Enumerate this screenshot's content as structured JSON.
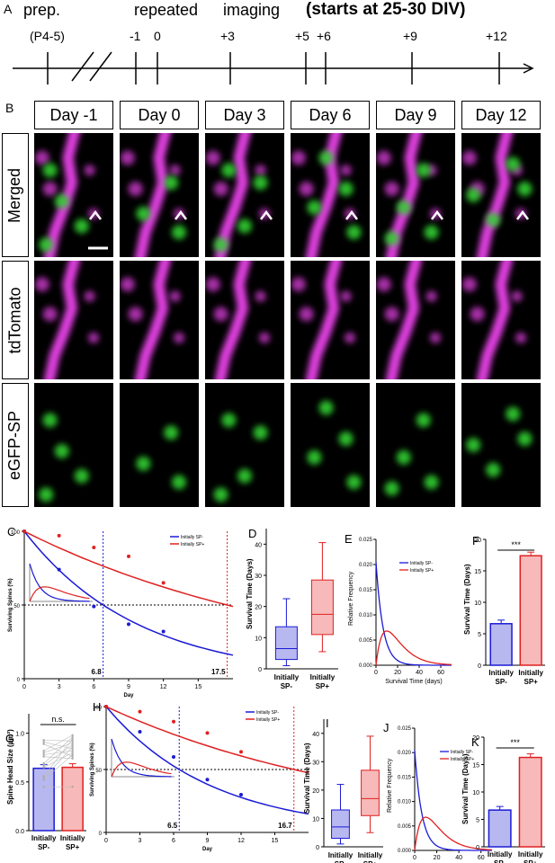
{
  "panelA": {
    "letter": "A",
    "prep": "prep.",
    "repeated": "repeated",
    "imaging": "imaging",
    "bold": "(starts at 25-30 DIV)",
    "prep_age": "(P4-5)",
    "ticks": [
      "-1",
      "0",
      "+3",
      "+5",
      "+6",
      "+9",
      "+12"
    ]
  },
  "panelB": {
    "letter": "B",
    "days": [
      "Day -1",
      "Day 0",
      "Day 3",
      "Day 6",
      "Day 9",
      "Day 12"
    ],
    "rows": [
      "Merged",
      "tdTomato",
      "eGFP-SP"
    ]
  },
  "legend": {
    "sp_minus": "Initially SP-",
    "sp_plus": "Initially SP+"
  },
  "colors": {
    "blue": "#1a1ad6",
    "red": "#e02020",
    "magenta": "#e040e0",
    "green": "#30d030"
  },
  "panelC": {
    "letter": "C",
    "ylabel": "Surviving Spines (%)",
    "xlabel": "Day",
    "marker_blue": "6.8",
    "marker_red": "17.5",
    "yticks": [
      "0",
      "50",
      "100"
    ],
    "xticks": [
      "0",
      "3",
      "6",
      "9",
      "12",
      "15"
    ]
  },
  "panelD": {
    "letter": "D",
    "ylabel": "Survival Time (Days)",
    "yticks": [
      "0",
      "10",
      "20",
      "30",
      "40"
    ],
    "cat1a": "Initially",
    "cat1b": "SP-",
    "cat2a": "Initially",
    "cat2b": "SP+"
  },
  "panelE": {
    "letter": "E",
    "ylabel": "Relative Frequency",
    "xlabel": "Survival Time (days)",
    "yticks": [
      "0.000",
      "0.005",
      "0.010",
      "0.015",
      "0.020",
      "0.025"
    ],
    "xticks": [
      "0",
      "20",
      "40",
      "60"
    ]
  },
  "panelF": {
    "letter": "F",
    "ylabel": "Survival Time (Days)",
    "sig": "***",
    "yticks": [
      "0",
      "5",
      "10",
      "15",
      "20"
    ],
    "cat1a": "Initially",
    "cat1b": "SP-",
    "cat2a": "Initially",
    "cat2b": "SP+"
  },
  "panelG": {
    "letter": "G",
    "ylabel": "Spine Head Size (µm²)",
    "sig": "n.s.",
    "yticks": [
      "0.0",
      "0.5",
      "1.0"
    ],
    "cat1a": "Initially",
    "cat1b": "SP-",
    "cat2a": "Initially",
    "cat2b": "SP+"
  },
  "panelH": {
    "letter": "H",
    "ylabel": "Surviving Spines (%)",
    "xlabel": "Day",
    "marker_blue": "6.5",
    "marker_red": "16.7",
    "yticks": [
      "0",
      "50",
      "100"
    ],
    "xticks": [
      "0",
      "3",
      "6",
      "9",
      "12",
      "15"
    ]
  },
  "panelI": {
    "letter": "I",
    "ylabel": "Survival Time (Days)",
    "yticks": [
      "0",
      "10",
      "20",
      "30",
      "40"
    ],
    "cat1a": "Initially",
    "cat1b": "SP-",
    "cat2a": "Initially",
    "cat2b": "SP+"
  },
  "panelJ": {
    "letter": "J",
    "ylabel": "Relative Frequency",
    "xlabel": "Survival Time (days)",
    "yticks": [
      "0.000",
      "0.005",
      "0.010",
      "0.015",
      "0.020",
      "0.025"
    ],
    "xticks": [
      "0",
      "20",
      "40",
      "60"
    ]
  },
  "panelK": {
    "letter": "K",
    "ylabel": "Survival Time (Days)",
    "sig": "***",
    "yticks": [
      "0",
      "5",
      "10",
      "15",
      "20"
    ],
    "cat1a": "Initially",
    "cat1b": "SP-",
    "cat2a": "Initially",
    "cat2b": "SP+"
  },
  "chart_data": [
    {
      "type": "scatter",
      "panel": "C",
      "ylabel": "Surviving Spines (%)",
      "xlabel": "Day",
      "xlim": [
        0,
        18
      ],
      "ylim": [
        0,
        100
      ],
      "series": [
        {
          "name": "Initially SP-",
          "x": [
            0,
            3,
            6,
            9,
            12
          ],
          "y": [
            100,
            74,
            49,
            37,
            32
          ]
        },
        {
          "name": "Initially SP+",
          "x": [
            0,
            3,
            6,
            9,
            12
          ],
          "y": [
            100,
            97,
            89,
            83,
            65
          ]
        }
      ],
      "half_life": {
        "Initially SP-": 6.8,
        "Initially SP+": 17.5
      }
    },
    {
      "type": "bar",
      "panel": "D",
      "ylabel": "Survival Time (Days)",
      "ylim": [
        0,
        45
      ],
      "categories": [
        "Initially SP-",
        "Initially SP+"
      ],
      "boxes": [
        {
          "min": 1,
          "q1": 3,
          "median": 6.5,
          "q3": 13.5,
          "max": 22.5
        },
        {
          "min": 5.5,
          "q1": 11,
          "median": 17.5,
          "q3": 28.5,
          "max": 40.5
        }
      ]
    },
    {
      "type": "line",
      "panel": "E",
      "ylabel": "Relative Frequency",
      "xlabel": "Survival Time (days)",
      "xlim": [
        0,
        70
      ],
      "ylim": [
        0,
        0.025
      ],
      "series": [
        {
          "name": "Initially SP-",
          "peak_x": 0,
          "peak_y": 0.02
        },
        {
          "name": "Initially SP+",
          "peak_x": 10,
          "peak_y": 0.007
        }
      ]
    },
    {
      "type": "bar",
      "panel": "F",
      "ylabel": "Survival Time (Days)",
      "ylim": [
        0,
        20
      ],
      "categories": [
        "Initially SP-",
        "Initially SP+"
      ],
      "values": [
        6.6,
        17.4
      ]
    },
    {
      "type": "bar",
      "panel": "G",
      "ylabel": "Spine Head Size (µm²)",
      "ylim": [
        0,
        1.2
      ],
      "categories": [
        "Initially SP-",
        "Initially SP+"
      ],
      "values": [
        0.64,
        0.65
      ]
    },
    {
      "type": "scatter",
      "panel": "H",
      "ylabel": "Surviving Spines (%)",
      "xlabel": "Day",
      "xlim": [
        0,
        18
      ],
      "ylim": [
        0,
        100
      ],
      "series": [
        {
          "name": "Initially SP-",
          "x": [
            0,
            3,
            6,
            9,
            12
          ],
          "y": [
            100,
            80,
            60,
            42,
            30
          ]
        },
        {
          "name": "Initially SP+",
          "x": [
            0,
            3,
            6,
            9,
            12
          ],
          "y": [
            100,
            96,
            88,
            79,
            64
          ]
        }
      ],
      "half_life": {
        "Initially SP-": 6.5,
        "Initially SP+": 16.7
      }
    },
    {
      "type": "bar",
      "panel": "I",
      "ylabel": "Survival Time (Days)",
      "ylim": [
        0,
        45
      ],
      "categories": [
        "Initially SP-",
        "Initially SP+"
      ],
      "boxes": [
        {
          "min": 1,
          "q1": 3,
          "median": 7,
          "q3": 13,
          "max": 22
        },
        {
          "min": 5,
          "q1": 11,
          "median": 17,
          "q3": 27,
          "max": 39
        }
      ]
    },
    {
      "type": "line",
      "panel": "J",
      "ylabel": "Relative Frequency",
      "xlabel": "Survival Time (days)",
      "xlim": [
        0,
        70
      ],
      "ylim": [
        0,
        0.025
      ],
      "series": [
        {
          "name": "Initially SP-",
          "peak_x": 0,
          "peak_y": 0.02
        },
        {
          "name": "Initially SP+",
          "peak_x": 10,
          "peak_y": 0.007
        }
      ]
    },
    {
      "type": "bar",
      "panel": "K",
      "ylabel": "Survival Time (Days)",
      "ylim": [
        0,
        20
      ],
      "categories": [
        "Initially SP-",
        "Initially SP+"
      ],
      "values": [
        6.7,
        16.3
      ]
    }
  ]
}
